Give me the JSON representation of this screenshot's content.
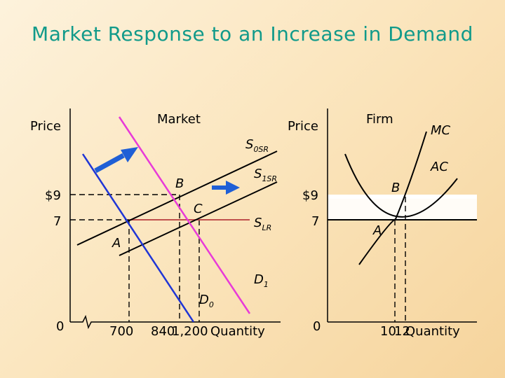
{
  "title": "Market Response to an Increase in Demand",
  "chart_data": [
    {
      "type": "line",
      "title": "Market",
      "ylabel": "Price",
      "xlabel": "Quantity",
      "y_ticks": [
        "$9",
        "7",
        "0"
      ],
      "x_ticks": [
        "700",
        "840",
        "1,200"
      ],
      "points": [
        {
          "name": "A",
          "x": 700,
          "y": 7
        },
        {
          "name": "B",
          "x": 840,
          "y": 9
        },
        {
          "name": "C",
          "x": 1200,
          "y": 7
        }
      ],
      "series": [
        {
          "name": "D",
          "sub": "0",
          "color": "#1f35d6"
        },
        {
          "name": "D",
          "sub": "1",
          "color": "#e83ad8"
        },
        {
          "name": "S",
          "sub": "0SR",
          "color": "#000000"
        },
        {
          "name": "S",
          "sub": "1SR",
          "color": "#000000"
        },
        {
          "name": "S",
          "sub": "LR",
          "color": "#c0504d"
        }
      ],
      "arrows_color": "#1f5fd6"
    },
    {
      "type": "line",
      "title": "Firm",
      "ylabel": "Price",
      "xlabel": "Quantity",
      "y_ticks": [
        "$9",
        "7",
        "0"
      ],
      "x_ticks": [
        "10",
        "12"
      ],
      "points": [
        {
          "name": "A",
          "x": 10,
          "y": 7
        },
        {
          "name": "B",
          "x": 12,
          "y": 9
        }
      ],
      "series": [
        {
          "name": "MC"
        },
        {
          "name": "AC"
        }
      ]
    }
  ]
}
